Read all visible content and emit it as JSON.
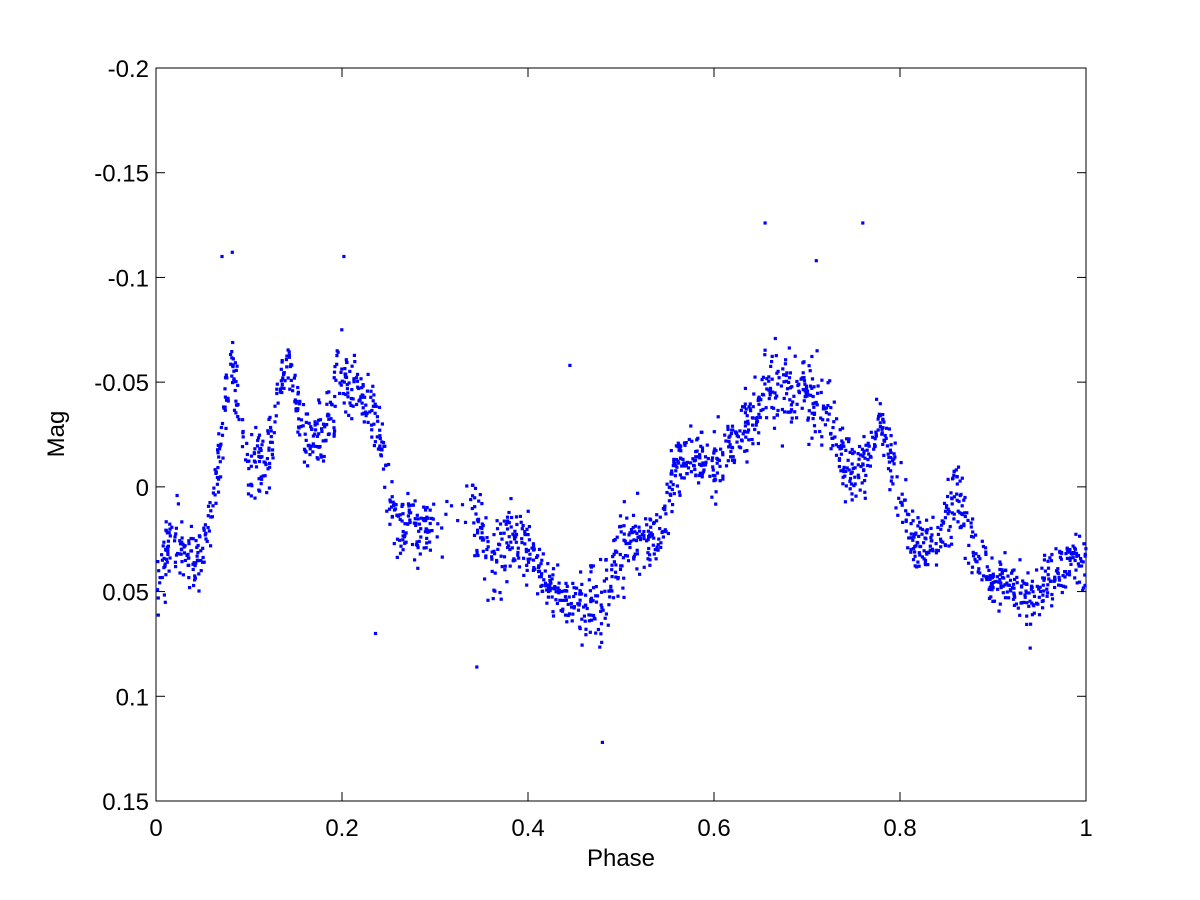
{
  "chart_data": {
    "type": "scatter",
    "title": "",
    "xlabel": "Phase",
    "ylabel": "Mag",
    "xlim": [
      0,
      1
    ],
    "ylim": [
      -0.2,
      0.15
    ],
    "y_reversed": true,
    "grid": false,
    "legend": "none",
    "marker_color": "#0000ff",
    "x_ticks": [
      "0",
      "0.2",
      "0.4",
      "0.6",
      "0.8",
      "1"
    ],
    "y_ticks": [
      "-0.2",
      "-0.15",
      "-0.1",
      "-0.05",
      "0",
      "0.05",
      "0.1",
      "0.15"
    ],
    "envelope": [
      {
        "x": 0.0,
        "lo": 0.025,
        "hi": 0.06
      },
      {
        "x": 0.02,
        "lo": -0.005,
        "hi": 0.05
      },
      {
        "x": 0.04,
        "lo": 0.02,
        "hi": 0.06
      },
      {
        "x": 0.06,
        "lo": 0.0,
        "hi": 0.03
      },
      {
        "x": 0.08,
        "lo": -0.085,
        "hi": -0.04
      },
      {
        "x": 0.1,
        "lo": -0.03,
        "hi": 0.01
      },
      {
        "x": 0.12,
        "lo": -0.04,
        "hi": 0.01
      },
      {
        "x": 0.14,
        "lo": -0.075,
        "hi": -0.05
      },
      {
        "x": 0.16,
        "lo": -0.045,
        "hi": 0.0
      },
      {
        "x": 0.18,
        "lo": -0.045,
        "hi": -0.005
      },
      {
        "x": 0.2,
        "lo": -0.085,
        "hi": -0.02
      },
      {
        "x": 0.22,
        "lo": -0.06,
        "hi": -0.03
      },
      {
        "x": 0.24,
        "lo": -0.05,
        "hi": 0.0
      },
      {
        "x": 0.26,
        "lo": 0.0,
        "hi": 0.04
      },
      {
        "x": 0.28,
        "lo": 0.0,
        "hi": 0.04
      },
      {
        "x": 0.3,
        "lo": 0.0,
        "hi": 0.04
      },
      {
        "x": 0.34,
        "lo": -0.01,
        "hi": 0.03
      },
      {
        "x": 0.36,
        "lo": 0.01,
        "hi": 0.07
      },
      {
        "x": 0.38,
        "lo": -0.01,
        "hi": 0.05
      },
      {
        "x": 0.4,
        "lo": 0.015,
        "hi": 0.045
      },
      {
        "x": 0.42,
        "lo": 0.03,
        "hi": 0.06
      },
      {
        "x": 0.44,
        "lo": 0.04,
        "hi": 0.07
      },
      {
        "x": 0.46,
        "lo": 0.03,
        "hi": 0.08
      },
      {
        "x": 0.48,
        "lo": 0.02,
        "hi": 0.09
      },
      {
        "x": 0.5,
        "lo": 0.0,
        "hi": 0.06
      },
      {
        "x": 0.52,
        "lo": 0.0,
        "hi": 0.05
      },
      {
        "x": 0.54,
        "lo": 0.01,
        "hi": 0.04
      },
      {
        "x": 0.56,
        "lo": -0.03,
        "hi": 0.01
      },
      {
        "x": 0.58,
        "lo": -0.03,
        "hi": 0.0
      },
      {
        "x": 0.6,
        "lo": -0.03,
        "hi": 0.01
      },
      {
        "x": 0.62,
        "lo": -0.035,
        "hi": -0.01
      },
      {
        "x": 0.64,
        "lo": -0.055,
        "hi": -0.01
      },
      {
        "x": 0.66,
        "lo": -0.08,
        "hi": -0.02
      },
      {
        "x": 0.68,
        "lo": -0.07,
        "hi": -0.02
      },
      {
        "x": 0.7,
        "lo": -0.07,
        "hi": -0.02
      },
      {
        "x": 0.72,
        "lo": -0.07,
        "hi": -0.01
      },
      {
        "x": 0.74,
        "lo": -0.03,
        "hi": 0.01
      },
      {
        "x": 0.76,
        "lo": -0.03,
        "hi": 0.01
      },
      {
        "x": 0.78,
        "lo": -0.045,
        "hi": -0.02
      },
      {
        "x": 0.8,
        "lo": -0.02,
        "hi": 0.03
      },
      {
        "x": 0.82,
        "lo": 0.01,
        "hi": 0.05
      },
      {
        "x": 0.84,
        "lo": 0.01,
        "hi": 0.04
      },
      {
        "x": 0.86,
        "lo": -0.02,
        "hi": 0.03
      },
      {
        "x": 0.88,
        "lo": 0.01,
        "hi": 0.05
      },
      {
        "x": 0.9,
        "lo": 0.03,
        "hi": 0.06
      },
      {
        "x": 0.92,
        "lo": 0.03,
        "hi": 0.06
      },
      {
        "x": 0.94,
        "lo": 0.04,
        "hi": 0.07
      },
      {
        "x": 0.96,
        "lo": 0.03,
        "hi": 0.06
      },
      {
        "x": 0.98,
        "lo": 0.02,
        "hi": 0.05
      },
      {
        "x": 1.0,
        "lo": 0.02,
        "hi": 0.06
      }
    ],
    "outliers": [
      {
        "x": 0.071,
        "y": -0.11
      },
      {
        "x": 0.082,
        "y": -0.112
      },
      {
        "x": 0.202,
        "y": -0.11
      },
      {
        "x": 0.655,
        "y": -0.126
      },
      {
        "x": 0.76,
        "y": -0.126
      },
      {
        "x": 0.71,
        "y": -0.108
      },
      {
        "x": 0.445,
        "y": -0.058
      },
      {
        "x": 0.48,
        "y": 0.122
      },
      {
        "x": 0.236,
        "y": 0.07
      },
      {
        "x": 0.345,
        "y": 0.086
      },
      {
        "x": 0.94,
        "y": 0.077
      }
    ]
  }
}
